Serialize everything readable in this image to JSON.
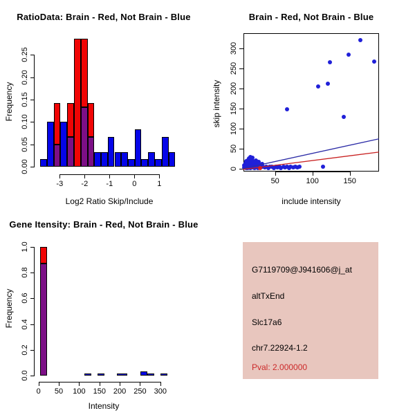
{
  "chart_data": [
    {
      "id": "ratio_histogram",
      "type": "bar",
      "title": "RatioData: Brain - Red, Not Brain - Blue",
      "xlabel": "Log2 Ratio Skip/Include",
      "ylabel": "Frequency",
      "xlim": [
        -4.0,
        1.77
      ],
      "ylim": [
        0,
        0.295
      ],
      "x_ticks": [
        -3,
        -2,
        -1,
        0,
        1
      ],
      "x_tick_labels": [
        "-3",
        "-2",
        "-1",
        "0",
        "1"
      ],
      "y_ticks": [
        0,
        0.05,
        0.1,
        0.15,
        0.2,
        0.25
      ],
      "y_tick_labels": [
        "0.00",
        "0.05",
        "0.10",
        "0.15",
        "0.20",
        "0.25"
      ],
      "bins_format": "x0,x1,freq_blue,freq_red",
      "bins": [
        [
          -3.78,
          -3.51,
          0.017,
          0
        ],
        [
          -3.51,
          -3.24,
          0.1,
          0
        ],
        [
          -3.24,
          -2.97,
          0.05,
          0.143
        ],
        [
          -2.97,
          -2.7,
          0.1,
          0
        ],
        [
          -2.7,
          -2.43,
          0.067,
          0.143
        ],
        [
          -2.43,
          -2.15,
          0,
          0.286
        ],
        [
          -2.15,
          -1.88,
          0.133,
          0.286
        ],
        [
          -1.88,
          -1.61,
          0.067,
          0.143
        ],
        [
          -1.61,
          -1.34,
          0.033,
          0
        ],
        [
          -1.34,
          -1.07,
          0.033,
          0
        ],
        [
          -1.07,
          -0.8,
          0.067,
          0
        ],
        [
          -0.8,
          -0.53,
          0.033,
          0
        ],
        [
          -0.53,
          -0.26,
          0.033,
          0
        ],
        [
          -0.26,
          0.01,
          0.017,
          0
        ],
        [
          0.01,
          0.28,
          0.083,
          0
        ],
        [
          0.28,
          0.55,
          0.017,
          0
        ],
        [
          0.55,
          0.83,
          0.033,
          0
        ],
        [
          0.83,
          1.1,
          0.017,
          0
        ],
        [
          1.1,
          1.37,
          0.067,
          0
        ],
        [
          1.37,
          1.64,
          0.033,
          0
        ]
      ],
      "colors": {
        "blue": "#0505e8",
        "red": "#f00505",
        "overlap": "#7c0f86"
      }
    },
    {
      "id": "intensity_scatter",
      "type": "scatter",
      "title": "Brain - Red, Not Brain - Blue",
      "xlabel": "include intensity",
      "ylabel": "skip intensity",
      "xlim": [
        7,
        189
      ],
      "ylim": [
        -6,
        338
      ],
      "x_ticks": [
        50,
        100,
        150
      ],
      "x_tick_labels": [
        "50",
        "100",
        "150"
      ],
      "y_ticks": [
        0,
        50,
        100,
        150,
        200,
        250,
        300
      ],
      "y_tick_labels": [
        "0",
        "50",
        "100",
        "150",
        "200",
        "250",
        "300"
      ],
      "points_blue": [
        [
          9,
          4
        ],
        [
          9,
          10
        ],
        [
          10,
          7
        ],
        [
          10,
          14
        ],
        [
          11,
          3
        ],
        [
          11,
          11
        ],
        [
          11,
          19
        ],
        [
          12,
          6
        ],
        [
          12,
          15
        ],
        [
          13,
          9
        ],
        [
          13,
          22
        ],
        [
          13,
          3
        ],
        [
          14,
          12
        ],
        [
          14,
          18
        ],
        [
          15,
          5
        ],
        [
          15,
          15
        ],
        [
          15,
          26
        ],
        [
          16,
          9
        ],
        [
          16,
          21
        ],
        [
          17,
          3
        ],
        [
          17,
          13
        ],
        [
          17,
          29
        ],
        [
          18,
          7
        ],
        [
          18,
          17
        ],
        [
          19,
          11
        ],
        [
          19,
          24
        ],
        [
          20,
          4
        ],
        [
          20,
          15
        ],
        [
          20,
          28
        ],
        [
          21,
          8
        ],
        [
          21,
          19
        ],
        [
          22,
          12
        ],
        [
          22,
          3
        ],
        [
          23,
          16
        ],
        [
          23,
          6
        ],
        [
          24,
          10
        ],
        [
          24,
          22
        ],
        [
          25,
          5
        ],
        [
          25,
          14
        ],
        [
          26,
          8
        ],
        [
          27,
          12
        ],
        [
          27,
          3
        ],
        [
          28,
          17
        ],
        [
          29,
          6
        ],
        [
          30,
          10
        ],
        [
          31,
          4
        ],
        [
          32,
          8
        ],
        [
          33,
          12
        ],
        [
          34,
          5
        ],
        [
          36,
          4
        ],
        [
          38,
          6
        ],
        [
          41,
          3
        ],
        [
          43,
          5
        ],
        [
          46,
          6
        ],
        [
          48,
          3
        ],
        [
          51,
          5
        ],
        [
          53,
          4
        ],
        [
          56,
          6
        ],
        [
          58,
          3
        ],
        [
          61,
          5
        ],
        [
          63,
          4
        ],
        [
          66,
          5
        ],
        [
          69,
          3
        ],
        [
          71,
          5
        ],
        [
          74,
          4
        ],
        [
          77,
          5
        ],
        [
          80,
          4
        ],
        [
          83,
          5
        ],
        [
          66,
          149
        ],
        [
          108,
          206
        ],
        [
          121,
          213
        ],
        [
          123,
          265
        ],
        [
          142,
          129
        ],
        [
          148,
          284
        ],
        [
          164,
          321
        ],
        [
          183,
          267
        ],
        [
          114,
          6
        ]
      ],
      "points_red": [
        [
          30,
          2
        ]
      ],
      "fit_lines": [
        {
          "name": "not-brain-fit-line",
          "color": "#2b2ba6",
          "x1": 7,
          "y1": 1,
          "x2": 189,
          "y2": 75
        },
        {
          "name": "brain-fit-line",
          "color": "#c82020",
          "x1": 7,
          "y1": -1,
          "x2": 189,
          "y2": 42
        }
      ],
      "colors": {
        "point_blue": "#2020d8",
        "point_red": "#e02020"
      }
    },
    {
      "id": "gene_intensity_histogram",
      "type": "bar",
      "title": "Gene Itensity: Brain - Red, Not Brain - Blue",
      "xlabel": "Intensity",
      "ylabel": "Frequency",
      "xlim": [
        -10,
        328
      ],
      "ylim": [
        0,
        1.04
      ],
      "x_ticks": [
        0,
        50,
        100,
        150,
        200,
        250,
        300
      ],
      "x_tick_labels": [
        "0",
        "50",
        "100",
        "150",
        "200",
        "250",
        "300"
      ],
      "y_ticks": [
        0,
        0.2,
        0.4,
        0.6,
        0.8,
        1.0
      ],
      "y_tick_labels": [
        "0.0",
        "0.2",
        "0.4",
        "0.6",
        "0.8",
        "1.0"
      ],
      "bins_format": "x0,x1,freq_blue,freq_red",
      "bins": [
        [
          3,
          21.5,
          0.87,
          1.0
        ],
        [
          113.5,
          130.5,
          0.017,
          0
        ],
        [
          145,
          162,
          0.017,
          0
        ],
        [
          193.5,
          219,
          0.017,
          0
        ],
        [
          251.5,
          268.5,
          0.033,
          0
        ],
        [
          268.5,
          284.5,
          0.017,
          0
        ],
        [
          300,
          317,
          0.017,
          0
        ]
      ],
      "colors": {
        "blue": "#0505e8",
        "red": "#f00505",
        "overlap": "#7c0f86"
      }
    }
  ],
  "info_panel": {
    "bg_color": "#e8c6be",
    "lines": [
      {
        "text": "G7119709@J941606@j_at",
        "color": "#000000"
      },
      {
        "text": "altTxEnd",
        "color": "#000000"
      },
      {
        "text": "Slc17a6",
        "color": "#000000"
      },
      {
        "text": "chr7.22924-1.2",
        "color": "#000000"
      },
      {
        "text": "Pval: 2.000000",
        "color": "#cc2929"
      }
    ]
  }
}
